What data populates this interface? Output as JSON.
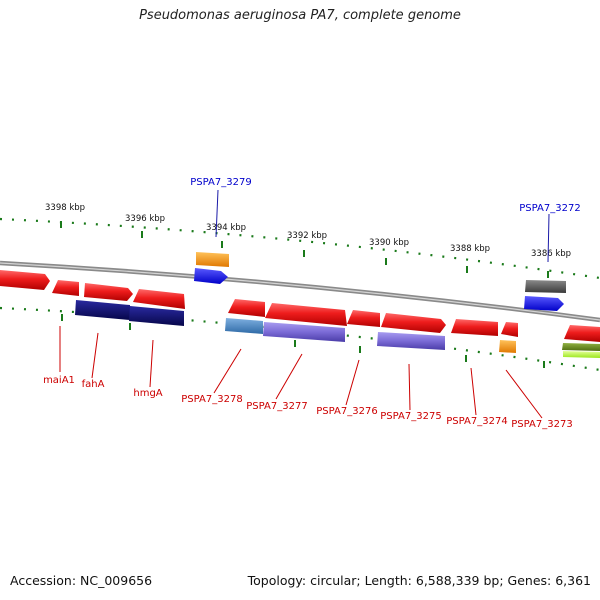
{
  "title": "Pseudomonas aeruginosa PA7, complete genome",
  "footer": {
    "accession": "Accession: NC_009656",
    "topology": "Topology: circular; Length: 6,588,339 bp; Genes: 6,361"
  },
  "scale_labels": [
    "3398 kbp",
    "3396 kbp",
    "3394 kbp",
    "3392 kbp",
    "3390 kbp",
    "3388 kbp",
    "3386 kbp"
  ],
  "features": [
    {
      "name": "PSPA7_3279",
      "color": "#0000cc"
    },
    {
      "name": "PSPA7_3272",
      "color": "#0000cc"
    },
    {
      "name": "maiA1",
      "color": "#cc0000"
    },
    {
      "name": "fahA",
      "color": "#cc0000"
    },
    {
      "name": "hmgA",
      "color": "#cc0000"
    },
    {
      "name": "PSPA7_3278",
      "color": "#cc0000"
    },
    {
      "name": "PSPA7_3277",
      "color": "#cc0000"
    },
    {
      "name": "PSPA7_3276",
      "color": "#cc0000"
    },
    {
      "name": "PSPA7_3275",
      "color": "#cc0000"
    },
    {
      "name": "PSPA7_3274",
      "color": "#cc0000"
    },
    {
      "name": "PSPA7_3273",
      "color": "#cc0000"
    }
  ],
  "colors": {
    "backbone": "#8a8a8a",
    "cds": "#e8121a",
    "gene_navy": "#0d0d6e",
    "gene_purple": "#7b6bd6",
    "gene_steel": "#4a86c0",
    "gene_orange": "#ff9a00",
    "gene_blue": "#1414ff",
    "gene_gray": "#555555",
    "gene_olive": "#6a8c1e",
    "gene_lime": "#b6ff3a",
    "tick_green": "#1a7a1a"
  }
}
